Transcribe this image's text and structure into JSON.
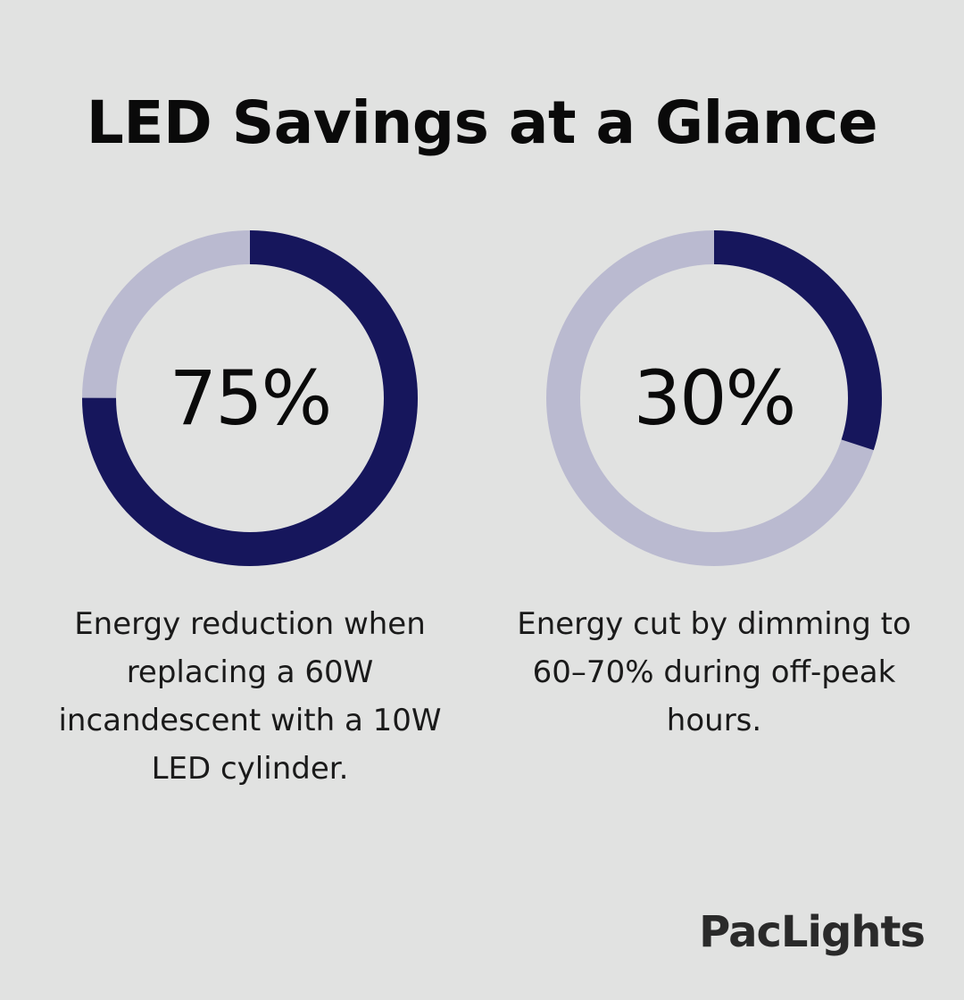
{
  "title": "LED Savings at a Glance",
  "colors": {
    "background": "#e1e2e1",
    "filled": "#16165c",
    "track": "#babad0"
  },
  "chart_data": [
    {
      "type": "pie",
      "value_label": "75%",
      "values": [
        75,
        25
      ],
      "caption": "Energy reduction when replacing a 60W incandescent with a 10W LED cylinder."
    },
    {
      "type": "pie",
      "value_label": "30%",
      "values": [
        30,
        70
      ],
      "caption": "Energy cut by dimming to 60–70% during off-peak hours."
    }
  ],
  "brand": "PacLights"
}
